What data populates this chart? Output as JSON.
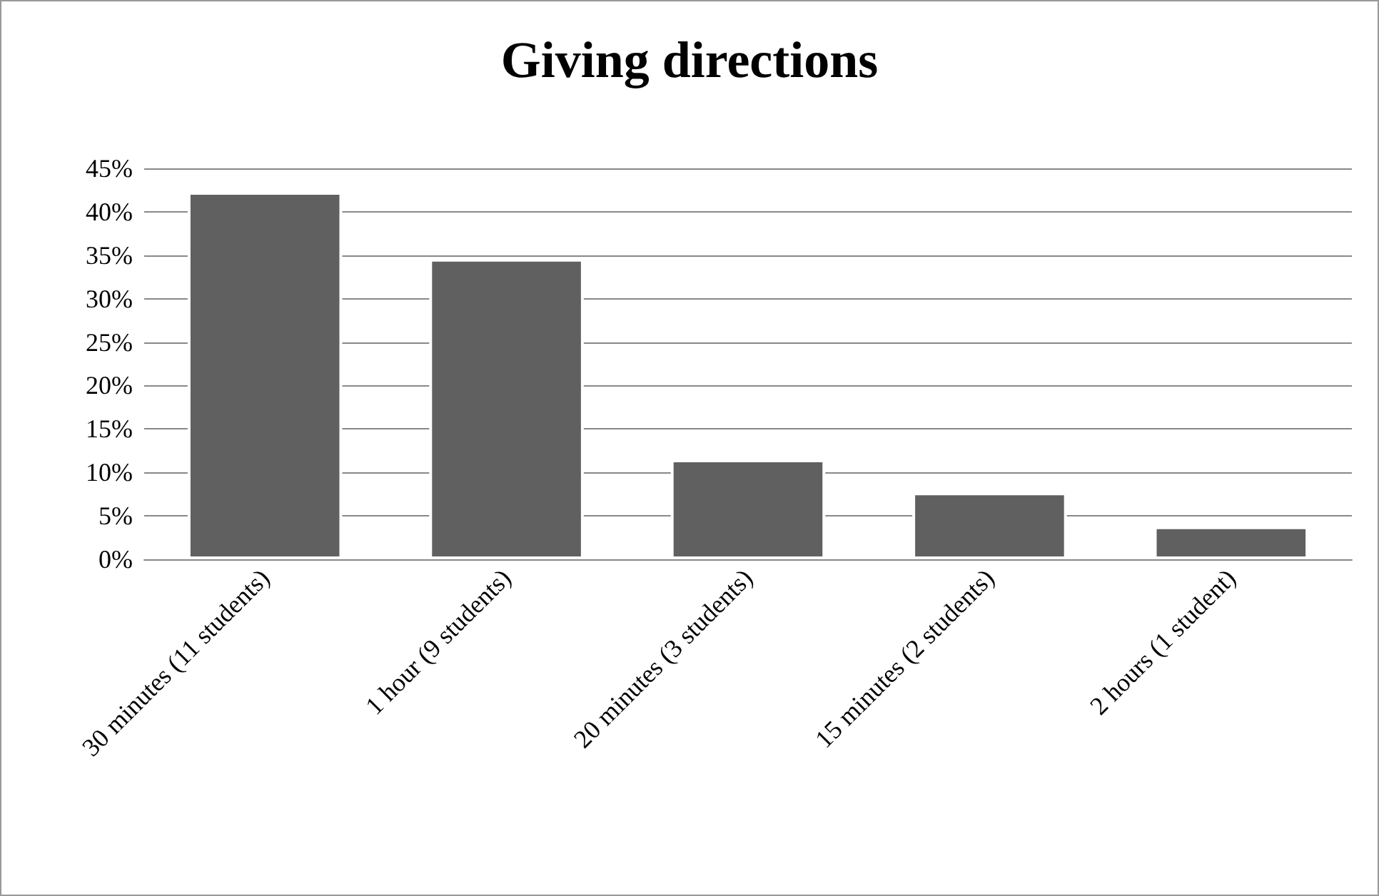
{
  "chart_data": {
    "type": "bar",
    "title": "Giving directions",
    "categories": [
      "30 minutes (11 students)",
      "1 hour (9 students)",
      "20 minutes (3 students)",
      "15 minutes (2 students)",
      "2 hours (1 student)"
    ],
    "values": [
      42.3,
      34.6,
      11.5,
      7.7,
      3.8
    ],
    "color": "#606060",
    "ylim": [
      0,
      45
    ],
    "yticks": [
      {
        "value": 0,
        "label": "0%"
      },
      {
        "value": 5,
        "label": "5%"
      },
      {
        "value": 10,
        "label": "10%"
      },
      {
        "value": 15,
        "label": "15%"
      },
      {
        "value": 20,
        "label": "20%"
      },
      {
        "value": 25,
        "label": "25%"
      },
      {
        "value": 30,
        "label": "30%"
      },
      {
        "value": 35,
        "label": "35%"
      },
      {
        "value": 40,
        "label": "40%"
      },
      {
        "value": 45,
        "label": "45%"
      }
    ],
    "grid": true
  }
}
